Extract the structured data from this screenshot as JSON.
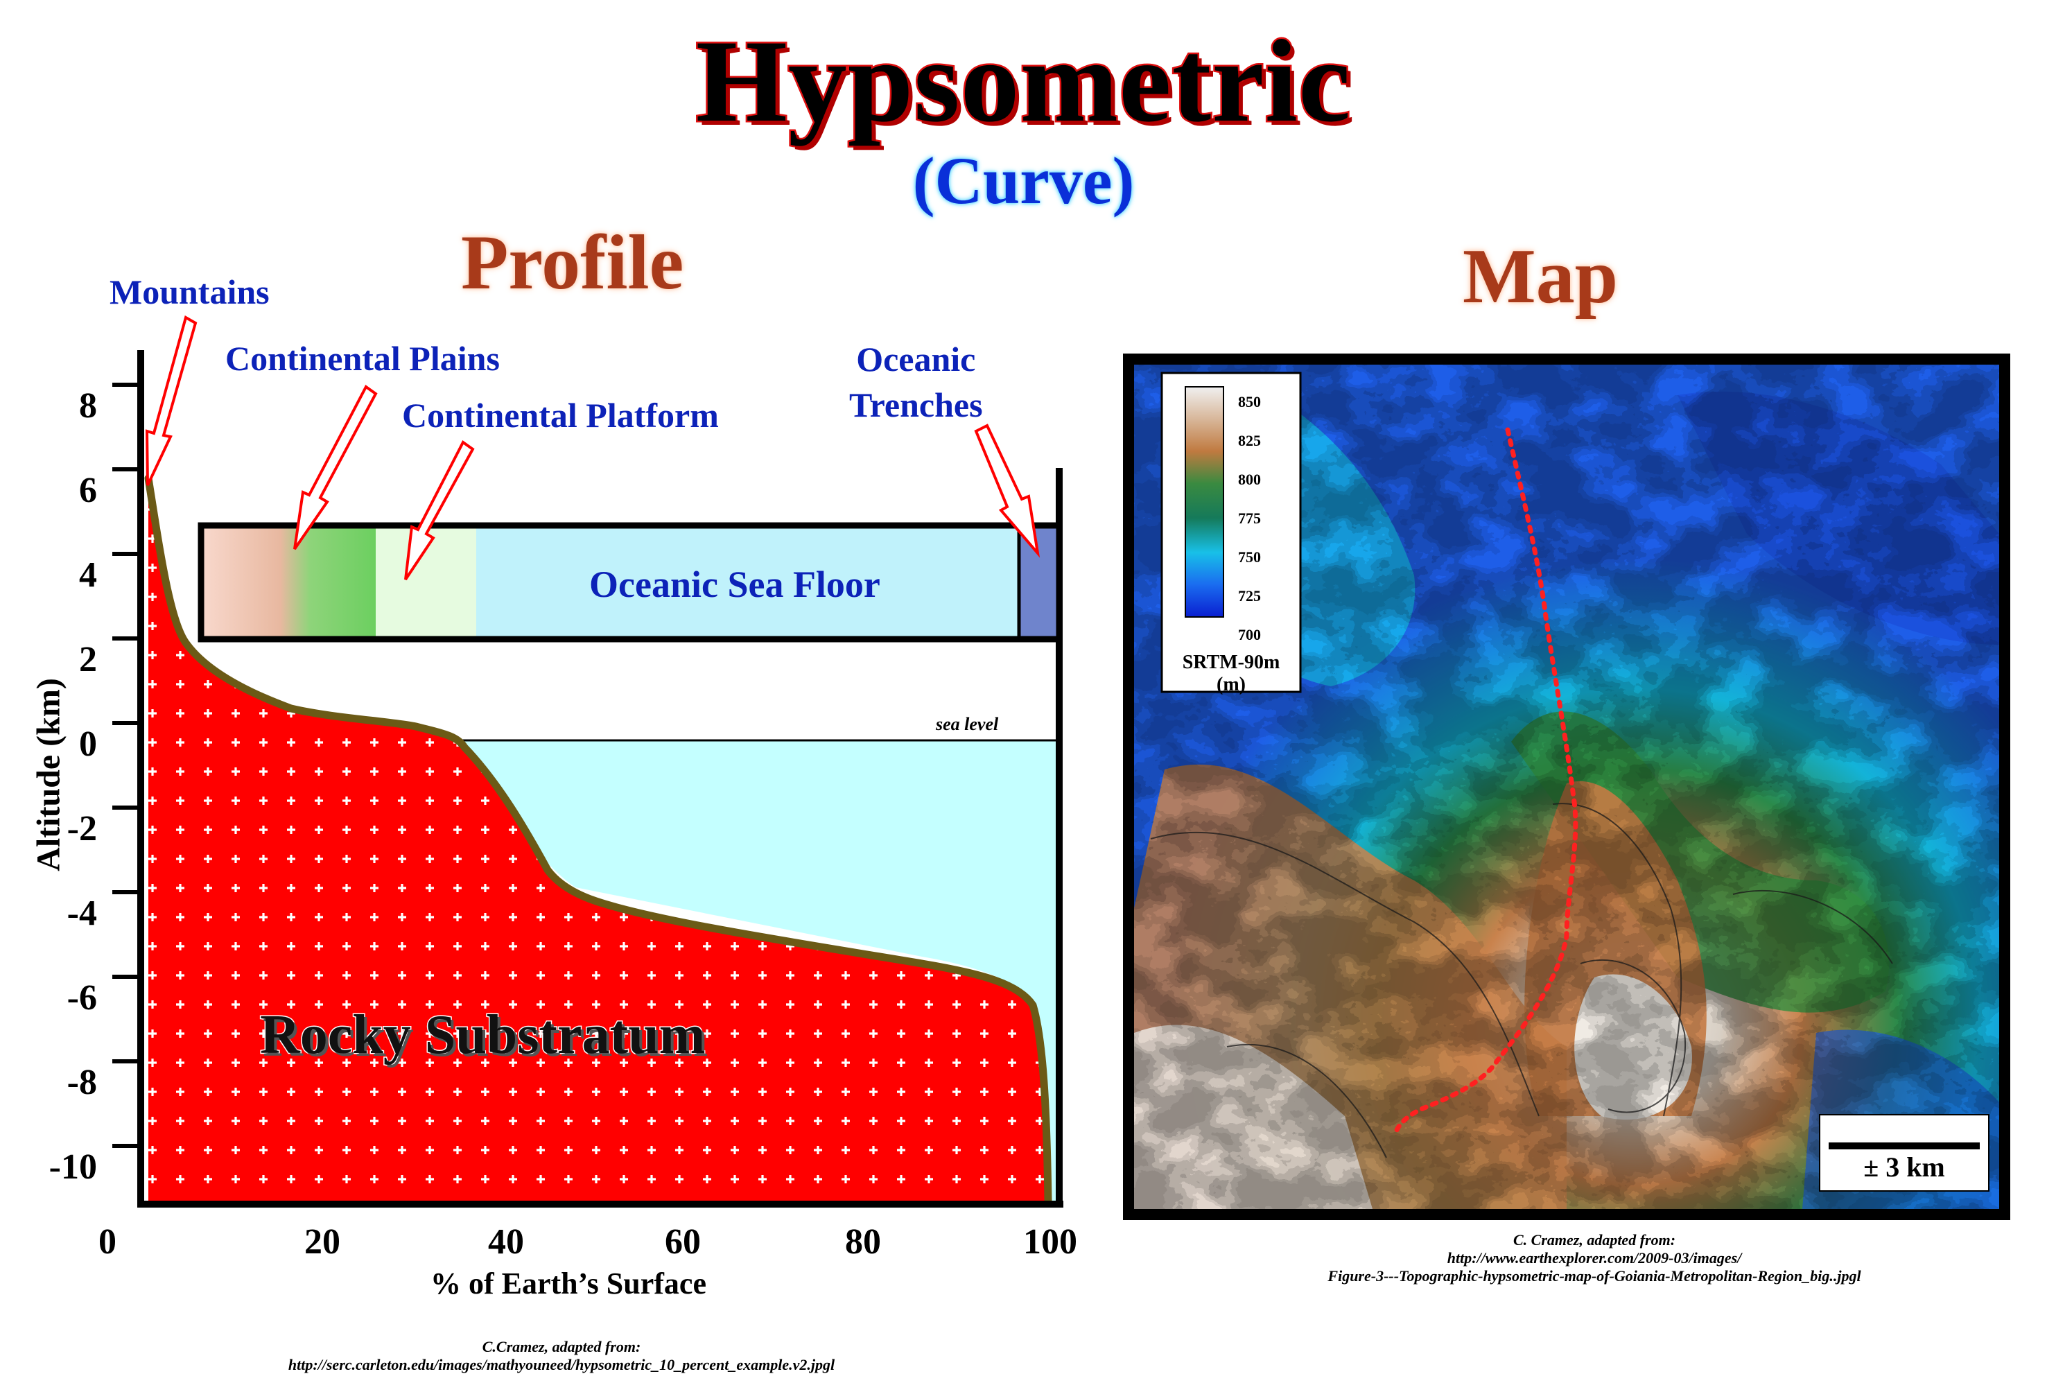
{
  "title": "Hypsometric",
  "subtitle": "(Curve)",
  "profile": {
    "heading": "Profile",
    "labels": {
      "mountains": "Mountains",
      "continental_plains": "Continental Plains",
      "continental_platform": "Continental Platform",
      "oceanic_trenches_1": "Oceanic",
      "oceanic_trenches_2": "Trenches",
      "oceanic_sea_floor": "Oceanic Sea Floor",
      "sea_level": "sea level",
      "rocky_substratum": "Rocky Substratum"
    },
    "y_axis_label": "Altitude (km)",
    "x_axis_label": "% of Earth’s Surface",
    "y_ticks": [
      "8",
      "6",
      "4",
      "2",
      "0",
      "-2",
      "-4",
      "-6",
      "-8",
      "-10"
    ],
    "x_ticks": [
      "0",
      "20",
      "40",
      "60",
      "80",
      "100"
    ],
    "credit_1": "C.Cramez, adapted from:",
    "credit_2": "http://serc.carleton.edu/images/mathyouneed/hypsometric_10_percent_example.v2.jpgl"
  },
  "map": {
    "heading": "Map",
    "legend_values": [
      "850",
      "825",
      "800",
      "775",
      "750",
      "725",
      "700"
    ],
    "legend_title_1": "SRTM-90m",
    "legend_title_2": "(m)",
    "scale_label": "± 3 km",
    "credit_1": "C. Cramez, adapted from:",
    "credit_2": "http://www.earthexplorer.com/2009-03/images/",
    "credit_3": "Figure-3---Topographic-hypsometric-map-of-Goiania-Metropolitan-Region_big..jpgl"
  },
  "colors": {
    "rock": "#ff0000",
    "ocean": "#c4ffff",
    "curve": "#6b5a16",
    "label_blue": "#0c22b8",
    "heading_brown": "#a83a1a"
  }
}
